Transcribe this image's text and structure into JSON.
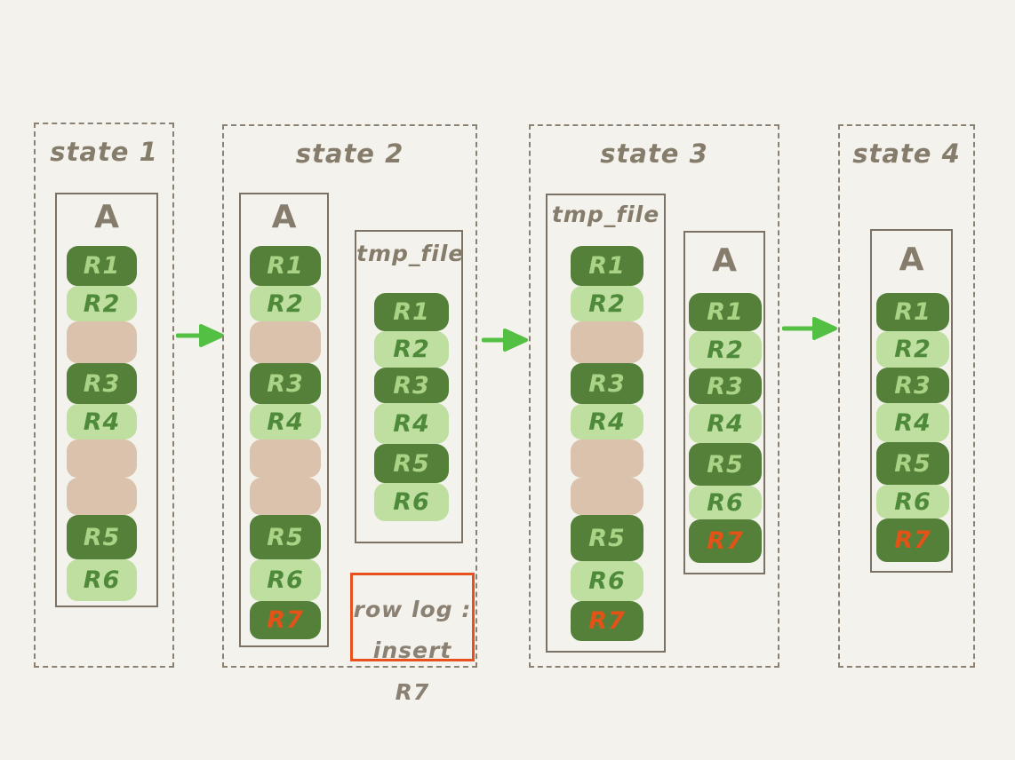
{
  "diagram": {
    "colors": {
      "background": "#f4f2ec",
      "row_dark": "#54803a",
      "row_light": "#bedfa0",
      "row_gap_free_space": "#dbc2ad",
      "text_on_dark": "#abd385",
      "text_on_light": "#4e8a3a",
      "highlight_red": "#e35317",
      "box_border": "#7b7265",
      "frame_dashed_border": "#8b8273",
      "label_text": "#857c6b",
      "arrow_green": "#53c043",
      "note_border": "#e8501d"
    },
    "states": [
      {
        "title": "state 1",
        "files": [
          {
            "name": "A",
            "rows": [
              {
                "label": "R1",
                "variant": "dark"
              },
              {
                "label": "R2",
                "variant": "light"
              },
              {
                "label": "",
                "variant": "gap"
              },
              {
                "label": "R3",
                "variant": "dark"
              },
              {
                "label": "R4",
                "variant": "light"
              },
              {
                "label": "",
                "variant": "gap"
              },
              {
                "label": "",
                "variant": "gap"
              },
              {
                "label": "R5",
                "variant": "dark"
              },
              {
                "label": "R6",
                "variant": "light"
              }
            ]
          }
        ]
      },
      {
        "title": "state 2",
        "files": [
          {
            "name": "A",
            "rows": [
              {
                "label": "R1",
                "variant": "dark"
              },
              {
                "label": "R2",
                "variant": "light"
              },
              {
                "label": "",
                "variant": "gap"
              },
              {
                "label": "R3",
                "variant": "dark"
              },
              {
                "label": "R4",
                "variant": "light"
              },
              {
                "label": "",
                "variant": "gap"
              },
              {
                "label": "",
                "variant": "gap"
              },
              {
                "label": "R5",
                "variant": "dark"
              },
              {
                "label": "R6",
                "variant": "light"
              },
              {
                "label": "R7",
                "variant": "dark-red"
              }
            ]
          },
          {
            "name": "tmp_file",
            "rows": [
              {
                "label": "R1",
                "variant": "dark"
              },
              {
                "label": "R2",
                "variant": "light"
              },
              {
                "label": "R3",
                "variant": "dark"
              },
              {
                "label": "R4",
                "variant": "light"
              },
              {
                "label": "R5",
                "variant": "dark"
              },
              {
                "label": "R6",
                "variant": "light"
              }
            ]
          }
        ],
        "note": {
          "line1": "row log :",
          "line2": "insert R7"
        }
      },
      {
        "title": "state 3",
        "files": [
          {
            "name": "tmp_file",
            "rows": [
              {
                "label": "R1",
                "variant": "dark"
              },
              {
                "label": "R2",
                "variant": "light"
              },
              {
                "label": "",
                "variant": "gap"
              },
              {
                "label": "R3",
                "variant": "dark"
              },
              {
                "label": "R4",
                "variant": "light"
              },
              {
                "label": "",
                "variant": "gap"
              },
              {
                "label": "",
                "variant": "gap"
              },
              {
                "label": "R5",
                "variant": "dark"
              },
              {
                "label": "R6",
                "variant": "light"
              },
              {
                "label": "R7",
                "variant": "dark-red"
              }
            ]
          },
          {
            "name": "A",
            "rows": [
              {
                "label": "R1",
                "variant": "dark"
              },
              {
                "label": "R2",
                "variant": "light"
              },
              {
                "label": "R3",
                "variant": "dark"
              },
              {
                "label": "R4",
                "variant": "light"
              },
              {
                "label": "R5",
                "variant": "dark"
              },
              {
                "label": "R6",
                "variant": "light"
              },
              {
                "label": "R7",
                "variant": "dark-red"
              }
            ]
          }
        ]
      },
      {
        "title": "state 4",
        "files": [
          {
            "name": "A",
            "rows": [
              {
                "label": "R1",
                "variant": "dark"
              },
              {
                "label": "R2",
                "variant": "light"
              },
              {
                "label": "R3",
                "variant": "dark"
              },
              {
                "label": "R4",
                "variant": "light"
              },
              {
                "label": "R5",
                "variant": "dark"
              },
              {
                "label": "R6",
                "variant": "light"
              },
              {
                "label": "R7",
                "variant": "dark-red"
              }
            ]
          }
        ]
      }
    ]
  }
}
